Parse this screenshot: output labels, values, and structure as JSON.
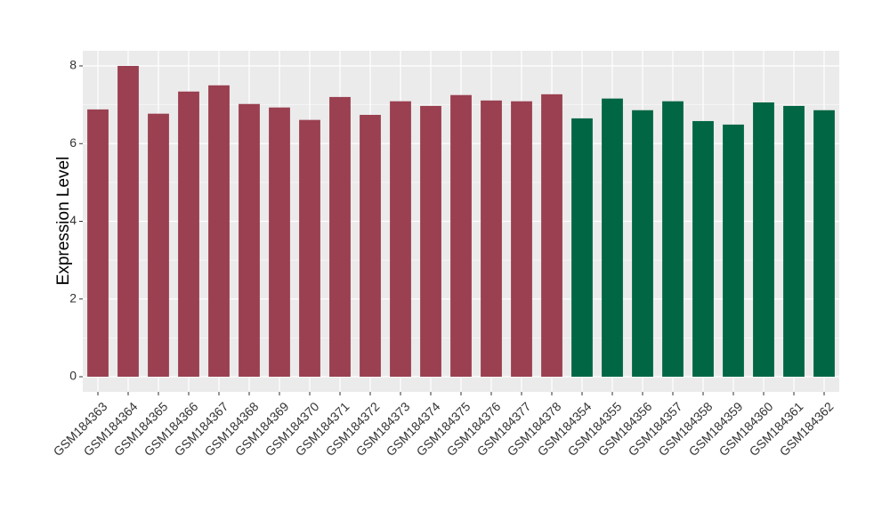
{
  "chart_data": {
    "type": "bar",
    "ylabel": "Expression Level",
    "categories": [
      "GSM184363",
      "GSM184364",
      "GSM184365",
      "GSM184366",
      "GSM184367",
      "GSM184368",
      "GSM184369",
      "GSM184370",
      "GSM184371",
      "GSM184372",
      "GSM184373",
      "GSM184374",
      "GSM184375",
      "GSM184376",
      "GSM184377",
      "GSM184378",
      "GSM184354",
      "GSM184355",
      "GSM184356",
      "GSM184357",
      "GSM184358",
      "GSM184359",
      "GSM184360",
      "GSM184361",
      "GSM184362"
    ],
    "values": [
      6.88,
      8.0,
      6.77,
      7.34,
      7.5,
      7.02,
      6.93,
      6.61,
      7.2,
      6.74,
      7.09,
      6.97,
      7.25,
      7.11,
      7.09,
      7.27,
      6.65,
      7.16,
      6.86,
      7.09,
      6.58,
      6.49,
      7.06,
      6.97,
      6.86
    ],
    "colors": [
      "#9a4050",
      "#9a4050",
      "#9a4050",
      "#9a4050",
      "#9a4050",
      "#9a4050",
      "#9a4050",
      "#9a4050",
      "#9a4050",
      "#9a4050",
      "#9a4050",
      "#9a4050",
      "#9a4050",
      "#9a4050",
      "#9a4050",
      "#9a4050",
      "#006644",
      "#006644",
      "#006644",
      "#006644",
      "#006644",
      "#006644",
      "#006644",
      "#006644",
      "#006644"
    ],
    "ylim": [
      -0.39,
      8.39
    ],
    "yticks": [
      0,
      2,
      4,
      6,
      8
    ],
    "grid": true
  }
}
